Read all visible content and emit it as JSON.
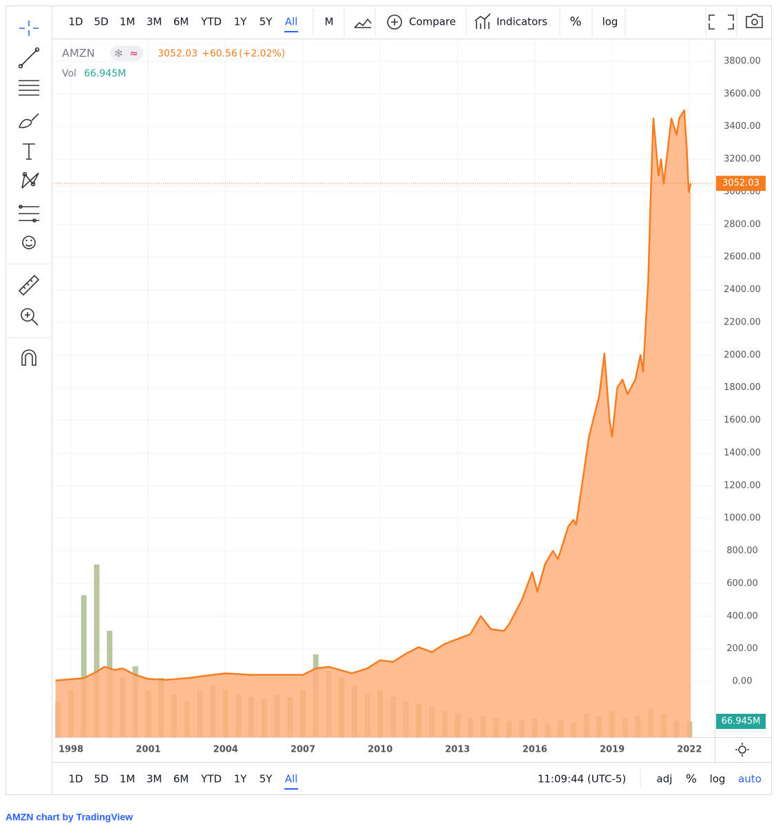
{
  "toolbar": {
    "ranges": [
      "1D",
      "5D",
      "1M",
      "3M",
      "6M",
      "YTD",
      "1Y",
      "5Y",
      "All"
    ],
    "interval": "M",
    "compare": "Compare",
    "indicators": "Indicators",
    "percent": "%",
    "log": "log"
  },
  "legend": {
    "symbol": "AMZN",
    "change": "+60.56",
    "change_pct": "(+2.02%)"
  },
  "chart_data": {
    "type": "area",
    "color": "#f57c1f",
    "fill": "#ffb07c",
    "grid": true,
    "x": [
      1997.4,
      1998.5,
      1999.0,
      1999.3,
      1999.7,
      2000.0,
      2000.5,
      2001.0,
      2001.7,
      2002.5,
      2003.5,
      2004.0,
      2005.0,
      2006.0,
      2007.0,
      2007.5,
      2008.0,
      2008.9,
      2009.5,
      2010.0,
      2010.5,
      2011.0,
      2011.5,
      2012.0,
      2012.5,
      2013.0,
      2013.5,
      2013.9,
      2014.3,
      2014.8,
      2015.0,
      2015.5,
      2015.9,
      2016.1,
      2016.4,
      2016.7,
      2016.9,
      2017.3,
      2017.5,
      2017.6,
      2017.8,
      2018.1,
      2018.5,
      2018.7,
      2018.9,
      2019.0,
      2019.2,
      2019.4,
      2019.6,
      2019.9,
      2020.1,
      2020.2,
      2020.4,
      2020.5,
      2020.6,
      2020.8,
      2020.9,
      2021.0,
      2021.3,
      2021.5,
      2021.6,
      2021.8,
      2021.9,
      2021.97,
      2022.05
    ],
    "values": [
      5,
      20,
      60,
      90,
      70,
      80,
      40,
      15,
      10,
      20,
      40,
      50,
      40,
      40,
      40,
      80,
      90,
      50,
      80,
      130,
      120,
      170,
      210,
      180,
      230,
      260,
      290,
      400,
      320,
      310,
      350,
      500,
      670,
      550,
      720,
      800,
      750,
      950,
      990,
      960,
      1170,
      1500,
      1750,
      2010,
      1600,
      1500,
      1800,
      1850,
      1760,
      1850,
      2000,
      1900,
      2450,
      3000,
      3450,
      3100,
      3200,
      3050,
      3450,
      3350,
      3450,
      3500,
      3250,
      3000,
      3052.03
    ],
    "last_price": 3052.03,
    "xlim": [
      1997.33,
      2022.98
    ],
    "xticks": [
      1998,
      2001,
      2004,
      2007,
      2010,
      2013,
      2016,
      2019,
      2022
    ],
    "ylim": [
      -342,
      3935
    ],
    "yticks": [
      {
        "value": 0,
        "label": "0.00"
      },
      {
        "value": 200,
        "label": "200.00"
      },
      {
        "value": 400,
        "label": "400.00"
      },
      {
        "value": 600,
        "label": "600.00"
      },
      {
        "value": 800,
        "label": "800.00"
      },
      {
        "value": 1000,
        "label": "1000.00"
      },
      {
        "value": 1200,
        "label": "1200.00"
      },
      {
        "value": 1400,
        "label": "1400.00"
      },
      {
        "value": 1600,
        "label": "1600.00"
      },
      {
        "value": 1800,
        "label": "1800.00"
      },
      {
        "value": 2000,
        "label": "2000.00"
      },
      {
        "value": 2200,
        "label": "2200.00"
      },
      {
        "value": 2400,
        "label": "2400.00"
      },
      {
        "value": 2600,
        "label": "2600.00"
      },
      {
        "value": 2800,
        "label": "2800.00"
      },
      {
        "value": 3000,
        "label": "3000.00"
      },
      {
        "value": 3200,
        "label": "3200.00"
      },
      {
        "value": 3400,
        "label": "3400.00"
      },
      {
        "value": 3600,
        "label": "3600.00"
      },
      {
        "value": 3800,
        "label": "3800.00"
      }
    ],
    "volume": {
      "name": "Vol",
      "color": "#a6b98a",
      "label_color": "#26a69a",
      "y2lim": [
        0,
        2948
      ],
      "x": [
        1997.5,
        1998.0,
        1998.5,
        1999.0,
        1999.5,
        2000.0,
        2000.5,
        2001.0,
        2001.5,
        2002.0,
        2002.5,
        2003.0,
        2003.5,
        2004.0,
        2004.5,
        2005.0,
        2005.5,
        2006.0,
        2006.5,
        2007.0,
        2007.5,
        2008.0,
        2008.5,
        2009.0,
        2009.5,
        2010.0,
        2010.5,
        2011.0,
        2011.5,
        2012.0,
        2012.5,
        2013.0,
        2013.5,
        2014.0,
        2014.5,
        2015.0,
        2015.5,
        2016.0,
        2016.5,
        2017.0,
        2017.5,
        2018.0,
        2018.5,
        2019.0,
        2019.5,
        2020.0,
        2020.5,
        2021.0,
        2021.5,
        2022.0
      ],
      "values": [
        150,
        200,
        600,
        730,
        450,
        250,
        300,
        200,
        250,
        180,
        150,
        200,
        220,
        200,
        180,
        170,
        160,
        180,
        170,
        200,
        350,
        280,
        250,
        220,
        180,
        200,
        170,
        150,
        140,
        130,
        110,
        100,
        80,
        90,
        80,
        70,
        70,
        80,
        60,
        70,
        60,
        100,
        90,
        110,
        80,
        90,
        120,
        100,
        70,
        66.945
      ],
      "value_labels": [
        null,
        null,
        null,
        null,
        null,
        null,
        null,
        null,
        null,
        null,
        null,
        null,
        null,
        null,
        null,
        null,
        null,
        null,
        null,
        null,
        null,
        null,
        null,
        null,
        null,
        null,
        null,
        null,
        null,
        null,
        null,
        null,
        null,
        null,
        null,
        null,
        null,
        null,
        null,
        null,
        null,
        null,
        null,
        null,
        null,
        null,
        null,
        null,
        null,
        "66.945M"
      ]
    }
  },
  "bottom_bar": {
    "ranges": [
      "1D",
      "5D",
      "1M",
      "3M",
      "6M",
      "YTD",
      "1Y",
      "5Y",
      "All"
    ],
    "time": "11:09:44 (UTC-5)",
    "adj": "adj",
    "percent": "%",
    "log": "log",
    "auto": "auto"
  },
  "footer": "AMZN chart by TradingView"
}
